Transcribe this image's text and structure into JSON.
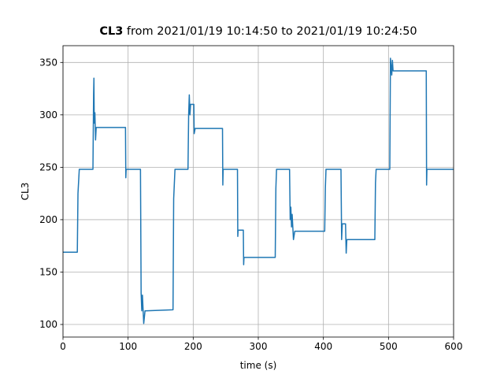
{
  "chart_data": {
    "type": "line",
    "title_bold": "CL3",
    "title": "from 2021/01/19 10:14:50 to 2021/01/19 10:24:50",
    "x_label": "time (s)",
    "y_label": "CL3",
    "xlim": [
      0,
      600
    ],
    "xticks": [
      0,
      100,
      200,
      300,
      400,
      500,
      600
    ],
    "ylim": [
      88,
      366
    ],
    "yticks": [
      100,
      150,
      200,
      250,
      300,
      350
    ],
    "grid": true,
    "series": [
      {
        "name": "CL3",
        "color": "#1f77b4",
        "x": [
          0,
          22,
          23,
          25,
          46,
          47,
          47.5,
          48,
          49,
          50,
          51,
          96,
          96.5,
          97,
          119,
          120,
          121,
          122,
          124,
          126,
          169,
          170,
          172,
          192,
          193,
          194,
          195,
          196,
          201,
          201.5,
          203,
          245,
          245.5,
          246,
          268,
          268.5,
          269,
          277,
          277.5,
          278,
          326,
          327,
          328,
          348,
          349,
          350,
          351,
          352,
          354,
          356,
          402,
          403,
          404,
          427,
          428,
          429,
          434,
          435,
          436,
          479,
          480,
          481,
          502,
          503,
          505,
          506,
          507,
          558,
          558.5,
          559,
          600
        ],
        "values": [
          169,
          169,
          225,
          248,
          248,
          320,
          335,
          292,
          302,
          276,
          288,
          288,
          240,
          248,
          248,
          130,
          113,
          128,
          101,
          113,
          114,
          220,
          248,
          248,
          300,
          319,
          300,
          310,
          310,
          282,
          287,
          287,
          233,
          248,
          248,
          184,
          190,
          190,
          157,
          164,
          164,
          230,
          248,
          248,
          200,
          212,
          193,
          205,
          181,
          189,
          189,
          230,
          248,
          248,
          181,
          196,
          196,
          168,
          181,
          181,
          235,
          248,
          248,
          354,
          338,
          352,
          342,
          342,
          233,
          248,
          248
        ]
      }
    ]
  }
}
